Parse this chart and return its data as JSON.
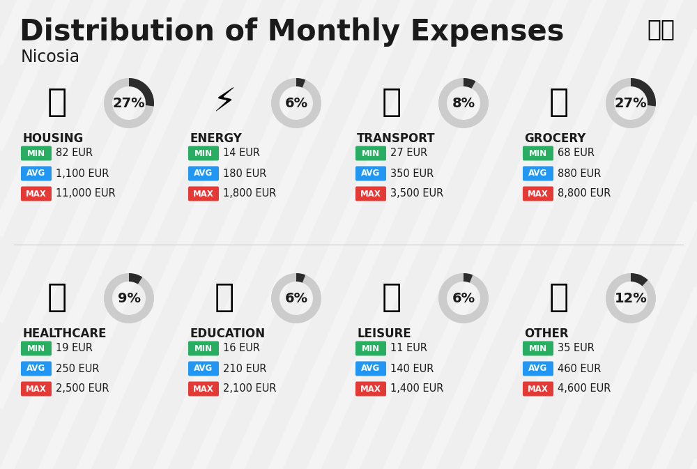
{
  "title": "Distribution of Monthly Expenses",
  "subtitle": "Nicosia",
  "background_color": "#efefef",
  "categories": [
    {
      "name": "HOUSING",
      "percent": 27,
      "min_val": "82 EUR",
      "avg_val": "1,100 EUR",
      "max_val": "11,000 EUR",
      "row": 0,
      "col": 0
    },
    {
      "name": "ENERGY",
      "percent": 6,
      "min_val": "14 EUR",
      "avg_val": "180 EUR",
      "max_val": "1,800 EUR",
      "row": 0,
      "col": 1
    },
    {
      "name": "TRANSPORT",
      "percent": 8,
      "min_val": "27 EUR",
      "avg_val": "350 EUR",
      "max_val": "3,500 EUR",
      "row": 0,
      "col": 2
    },
    {
      "name": "GROCERY",
      "percent": 27,
      "min_val": "68 EUR",
      "avg_val": "880 EUR",
      "max_val": "8,800 EUR",
      "row": 0,
      "col": 3
    },
    {
      "name": "HEALTHCARE",
      "percent": 9,
      "min_val": "19 EUR",
      "avg_val": "250 EUR",
      "max_val": "2,500 EUR",
      "row": 1,
      "col": 0
    },
    {
      "name": "EDUCATION",
      "percent": 6,
      "min_val": "16 EUR",
      "avg_val": "210 EUR",
      "max_val": "2,100 EUR",
      "row": 1,
      "col": 1
    },
    {
      "name": "LEISURE",
      "percent": 6,
      "min_val": "11 EUR",
      "avg_val": "140 EUR",
      "max_val": "1,400 EUR",
      "row": 1,
      "col": 2
    },
    {
      "name": "OTHER",
      "percent": 12,
      "min_val": "35 EUR",
      "avg_val": "460 EUR",
      "max_val": "4,600 EUR",
      "row": 1,
      "col": 3
    }
  ],
  "min_color": "#27ae60",
  "avg_color": "#2196f3",
  "max_color": "#e53935",
  "label_color": "#ffffff",
  "text_color": "#1a1a1a",
  "donut_bg": "#cccccc",
  "donut_fg": "#2c2c2c",
  "title_fontsize": 30,
  "subtitle_fontsize": 17,
  "cat_fontsize": 12,
  "val_fontsize": 10.5,
  "pct_fontsize": 14
}
